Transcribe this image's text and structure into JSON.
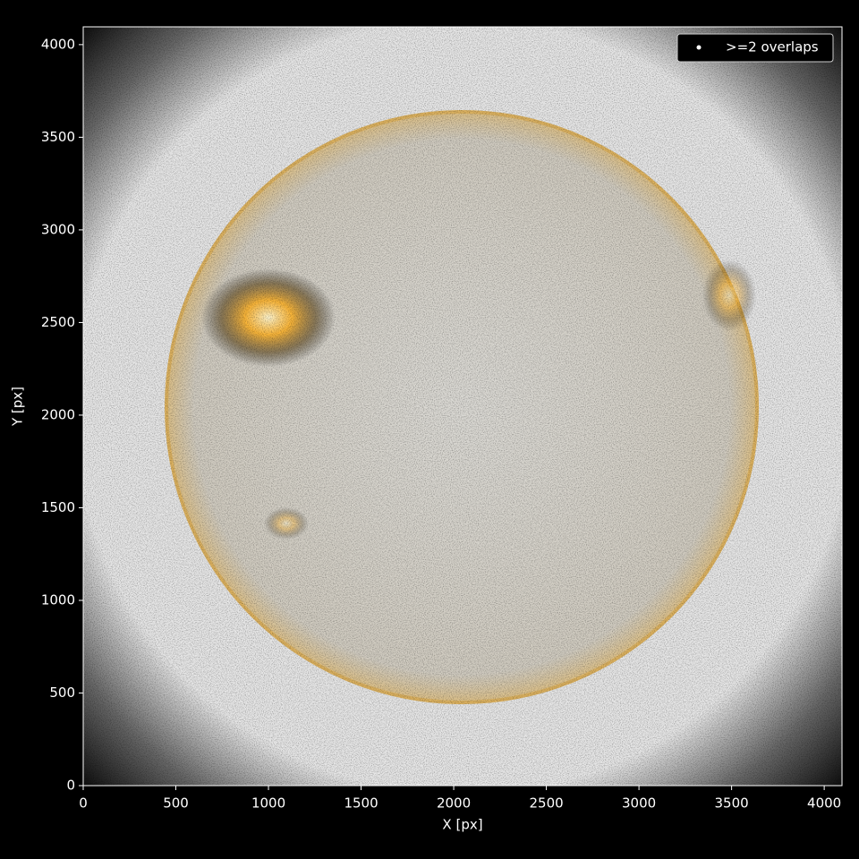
{
  "chart_data": {
    "type": "scatter",
    "xlabel": "X [px]",
    "ylabel": "Y [px]",
    "xlim": [
      0,
      4096
    ],
    "ylim": [
      0,
      4096
    ],
    "xticks": [
      0,
      500,
      1000,
      1500,
      2000,
      2500,
      3000,
      3500,
      4000
    ],
    "yticks": [
      0,
      500,
      1000,
      1500,
      2000,
      2500,
      3000,
      3500,
      4000
    ],
    "series": [
      {
        "name": ">=2 overlaps",
        "color": "#ffffff"
      }
    ],
    "legend": "upper right"
  }
}
